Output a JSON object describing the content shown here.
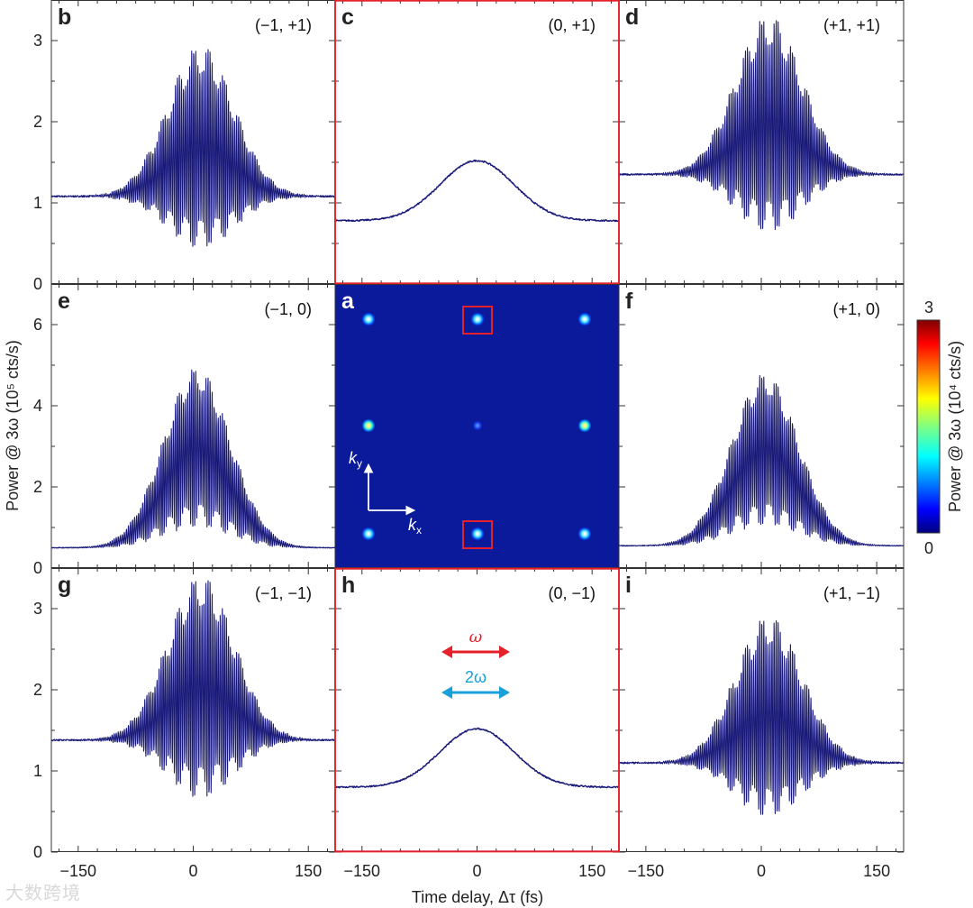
{
  "figure": {
    "ylabel_top": "Power @ 3ω (10⁵ cts/s)",
    "xlabel": "Time delay, Δτ (fs)",
    "colorbar": {
      "label": "Power @ 3ω (10⁴ cts/s)",
      "max_label": "3",
      "min_label": "0",
      "range": [
        0,
        3
      ]
    },
    "legend": [
      {
        "label": "ω",
        "color": "#e4202a"
      },
      {
        "label": "2ω",
        "color": "#1aa0d8"
      }
    ],
    "map_labels": {
      "ky": "k",
      "ky_sub": "y",
      "kx": "k",
      "kx_sub": "x"
    },
    "watermark": "大数跨境"
  },
  "chart_data": [
    {
      "type": "line",
      "panel": "b",
      "label": "(−1, +1)",
      "xlim": [
        -185,
        185
      ],
      "ylim": [
        0,
        3.5
      ],
      "yticks": [
        "0",
        "1",
        "2",
        "3"
      ],
      "xticks": [
        "−150",
        "0",
        "150"
      ],
      "baseline": 1.08,
      "peak_upper": 2.98,
      "peak_lower": 0.4,
      "center": 10,
      "oscillating": true
    },
    {
      "type": "line",
      "panel": "c",
      "label": "(0, +1)",
      "xlim": [
        -185,
        185
      ],
      "ylim": [
        0,
        3.5
      ],
      "xticks": [
        "−150",
        "0",
        "150"
      ],
      "baseline": 0.78,
      "peak": 1.52,
      "center": 0,
      "oscillating": false
    },
    {
      "type": "line",
      "panel": "d",
      "label": "(+1, +1)",
      "xlim": [
        -185,
        185
      ],
      "ylim": [
        0,
        3.5
      ],
      "xticks": [
        "−150",
        "0",
        "150"
      ],
      "baseline": 1.35,
      "peak_upper": 3.35,
      "peak_lower": 0.6,
      "center": 10,
      "oscillating": true
    },
    {
      "type": "line",
      "panel": "e",
      "label": "(−1, 0)",
      "xlim": [
        -185,
        185
      ],
      "ylim": [
        0,
        7
      ],
      "yticks": [
        "0",
        "2",
        "4",
        "6"
      ],
      "xticks": [
        "−150",
        "0",
        "150"
      ],
      "baseline": 0.5,
      "peak_upper": 5.0,
      "peak_lower": 0.95,
      "center": 5,
      "oscillating": true
    },
    {
      "type": "heatmap",
      "panel": "a",
      "grid": [
        "−1",
        "0",
        "+1"
      ],
      "spots": [
        {
          "k": "(−1, +1)",
          "intensity": 1.7
        },
        {
          "k": "(0, +1)",
          "intensity": 1.8
        },
        {
          "k": "(+1, +1)",
          "intensity": 1.9
        },
        {
          "k": "(−1, 0)",
          "intensity": 2.3
        },
        {
          "k": "(0, 0)",
          "intensity": 0.6
        },
        {
          "k": "(+1, 0)",
          "intensity": 2.3
        },
        {
          "k": "(−1, −1)",
          "intensity": 1.7
        },
        {
          "k": "(0, −1)",
          "intensity": 1.8
        },
        {
          "k": "(+1, −1)",
          "intensity": 1.7
        }
      ],
      "highlighted": [
        "(0, +1)",
        "(0, −1)"
      ]
    },
    {
      "type": "line",
      "panel": "f",
      "label": "(+1, 0)",
      "xlim": [
        -185,
        185
      ],
      "ylim": [
        0,
        7
      ],
      "xticks": [
        "−150",
        "0",
        "150"
      ],
      "baseline": 0.55,
      "peak_upper": 4.85,
      "peak_lower": 1.0,
      "center": 5,
      "oscillating": true
    },
    {
      "type": "line",
      "panel": "g",
      "label": "(−1, −1)",
      "xlim": [
        -185,
        185
      ],
      "ylim": [
        0,
        3.5
      ],
      "yticks": [
        "0",
        "1",
        "2",
        "3"
      ],
      "xticks": [
        "−150",
        "0",
        "150"
      ],
      "baseline": 1.38,
      "peak_upper": 3.45,
      "peak_lower": 0.62,
      "center": 10,
      "oscillating": true
    },
    {
      "type": "line",
      "panel": "h",
      "label": "(0, −1)",
      "xlim": [
        -185,
        185
      ],
      "ylim": [
        0,
        3.5
      ],
      "xticks": [
        "−150",
        "0",
        "150"
      ],
      "baseline": 0.8,
      "peak": 1.52,
      "center": 0,
      "oscillating": false
    },
    {
      "type": "line",
      "panel": "i",
      "label": "(+1, −1)",
      "xlim": [
        -185,
        185
      ],
      "ylim": [
        0,
        3.5
      ],
      "xticks": [
        "−150",
        "0",
        "150"
      ],
      "baseline": 1.1,
      "peak_upper": 2.95,
      "peak_lower": 0.4,
      "center": 10,
      "oscillating": true
    }
  ]
}
